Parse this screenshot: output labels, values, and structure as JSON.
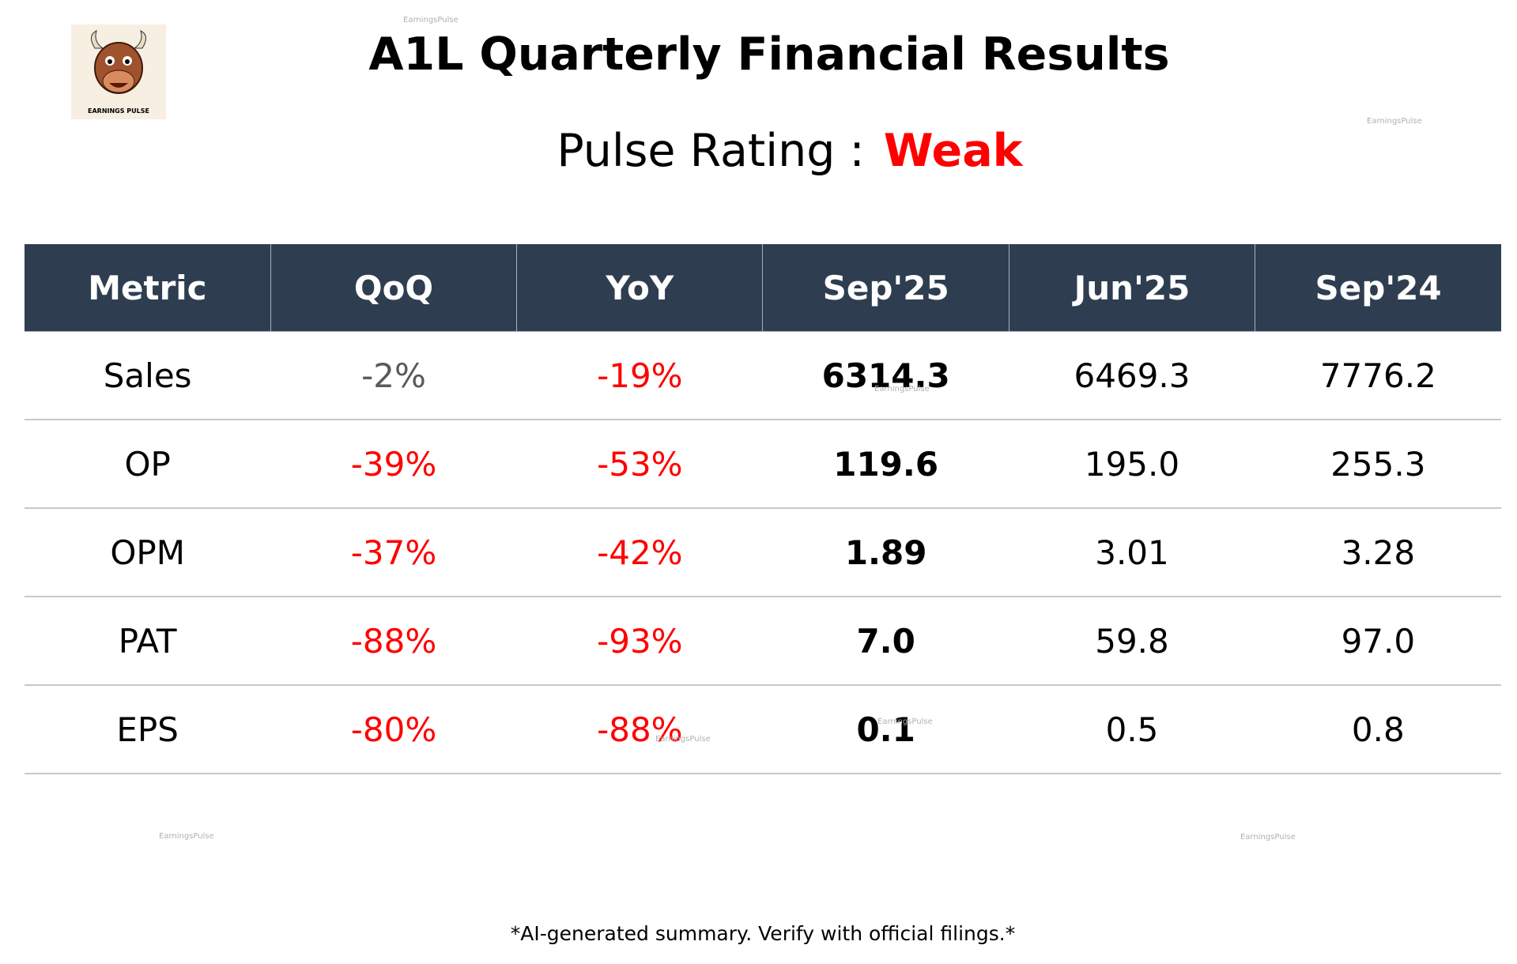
{
  "header": {
    "title": "A1L Quarterly Financial Results",
    "rating_label": "Pulse Rating :",
    "rating": "Weak",
    "logo_text": "EARNINGS PULSE"
  },
  "watermark": "EarningsPulse",
  "table": {
    "columns": [
      "Metric",
      "QoQ",
      "YoY",
      "Sep'25",
      "Jun'25",
      "Sep'24"
    ],
    "rows": [
      [
        "Sales",
        "-2%",
        "-19%",
        "6314.3",
        "6469.3",
        "7776.2"
      ],
      [
        "OP",
        "-39%",
        "-53%",
        "119.6",
        "195.0",
        "255.3"
      ],
      [
        "OPM",
        "-37%",
        "-42%",
        "1.89",
        "3.01",
        "3.28"
      ],
      [
        "PAT",
        "-88%",
        "-93%",
        "7.0",
        "59.8",
        "97.0"
      ],
      [
        "EPS",
        "-80%",
        "-88%",
        "0.1",
        "0.5",
        "0.8"
      ]
    ]
  },
  "footer": "*AI-generated summary. Verify with official filings.*"
}
